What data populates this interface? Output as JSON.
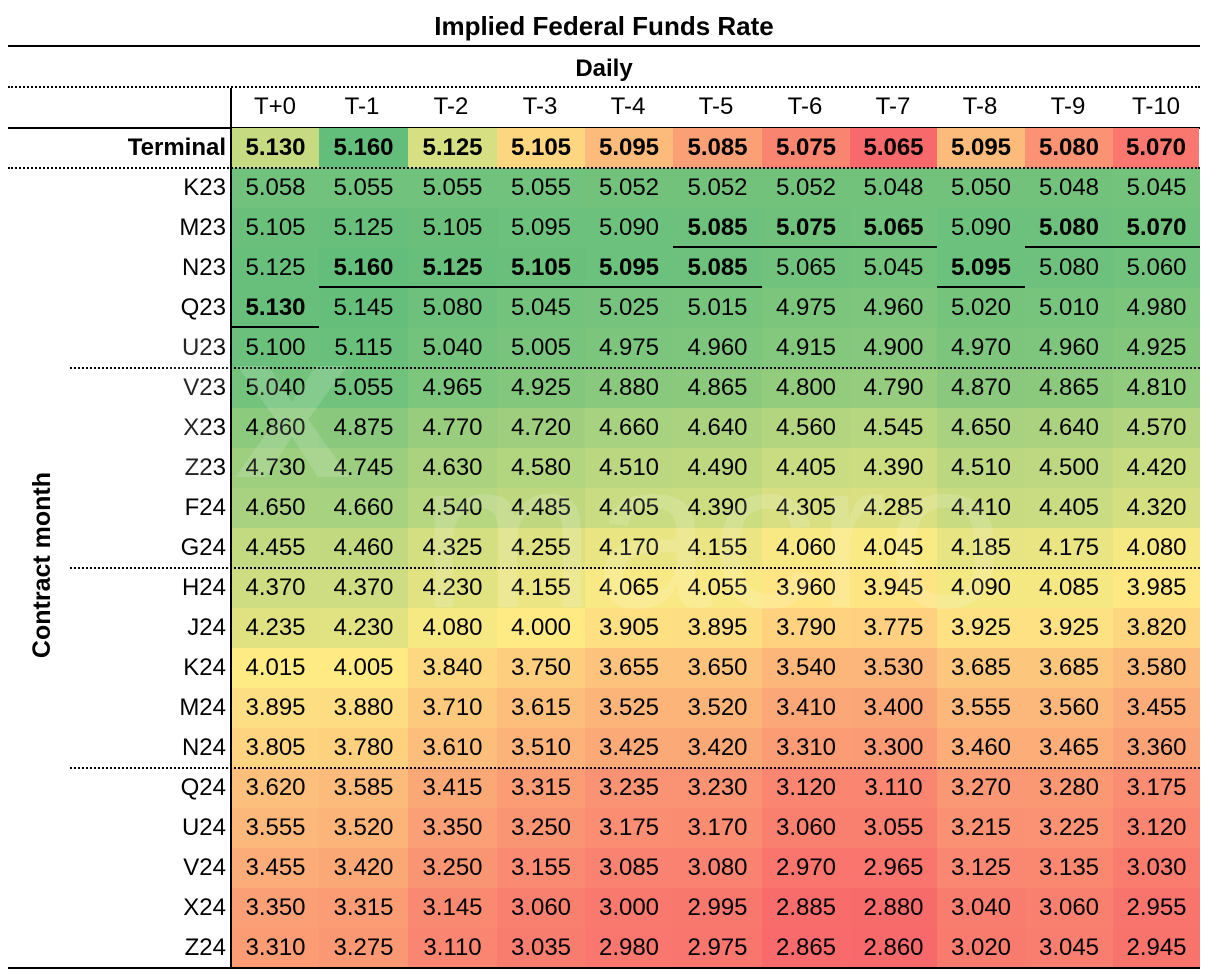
{
  "chart_data": {
    "type": "heatmap",
    "title": "Implied Federal Funds Rate",
    "subtitle": "Daily",
    "ylabel": "Contract month",
    "columns": [
      "T+0",
      "T-1",
      "T-2",
      "T-3",
      "T-4",
      "T-5",
      "T-6",
      "T-7",
      "T-8",
      "T-9",
      "T-10"
    ],
    "terminal": {
      "label": "Terminal",
      "values": [
        "5.130",
        "5.160",
        "5.125",
        "5.105",
        "5.095",
        "5.085",
        "5.075",
        "5.065",
        "5.095",
        "5.080",
        "5.070"
      ]
    },
    "rows": [
      {
        "label": "K23",
        "values": [
          "5.058",
          "5.055",
          "5.055",
          "5.055",
          "5.052",
          "5.052",
          "5.052",
          "5.048",
          "5.050",
          "5.048",
          "5.045"
        ]
      },
      {
        "label": "M23",
        "values": [
          "5.105",
          "5.125",
          "5.105",
          "5.095",
          "5.090",
          "5.085",
          "5.075",
          "5.065",
          "5.090",
          "5.080",
          "5.070"
        ]
      },
      {
        "label": "N23",
        "values": [
          "5.125",
          "5.160",
          "5.125",
          "5.105",
          "5.095",
          "5.085",
          "5.065",
          "5.045",
          "5.095",
          "5.080",
          "5.060"
        ]
      },
      {
        "label": "Q23",
        "values": [
          "5.130",
          "5.145",
          "5.080",
          "5.045",
          "5.025",
          "5.015",
          "4.975",
          "4.960",
          "5.020",
          "5.010",
          "4.980"
        ]
      },
      {
        "label": "U23",
        "values": [
          "5.100",
          "5.115",
          "5.040",
          "5.005",
          "4.975",
          "4.960",
          "4.915",
          "4.900",
          "4.970",
          "4.960",
          "4.925"
        ]
      },
      {
        "label": "V23",
        "values": [
          "5.040",
          "5.055",
          "4.965",
          "4.925",
          "4.880",
          "4.865",
          "4.800",
          "4.790",
          "4.870",
          "4.865",
          "4.810"
        ]
      },
      {
        "label": "X23",
        "values": [
          "4.860",
          "4.875",
          "4.770",
          "4.720",
          "4.660",
          "4.640",
          "4.560",
          "4.545",
          "4.650",
          "4.640",
          "4.570"
        ]
      },
      {
        "label": "Z23",
        "values": [
          "4.730",
          "4.745",
          "4.630",
          "4.580",
          "4.510",
          "4.490",
          "4.405",
          "4.390",
          "4.510",
          "4.500",
          "4.420"
        ]
      },
      {
        "label": "F24",
        "values": [
          "4.650",
          "4.660",
          "4.540",
          "4.485",
          "4.405",
          "4.390",
          "4.305",
          "4.285",
          "4.410",
          "4.405",
          "4.320"
        ]
      },
      {
        "label": "G24",
        "values": [
          "4.455",
          "4.460",
          "4.325",
          "4.255",
          "4.170",
          "4.155",
          "4.060",
          "4.045",
          "4.185",
          "4.175",
          "4.080"
        ]
      },
      {
        "label": "H24",
        "values": [
          "4.370",
          "4.370",
          "4.230",
          "4.155",
          "4.065",
          "4.055",
          "3.960",
          "3.945",
          "4.090",
          "4.085",
          "3.985"
        ]
      },
      {
        "label": "J24",
        "values": [
          "4.235",
          "4.230",
          "4.080",
          "4.000",
          "3.905",
          "3.895",
          "3.790",
          "3.775",
          "3.925",
          "3.925",
          "3.820"
        ]
      },
      {
        "label": "K24",
        "values": [
          "4.015",
          "4.005",
          "3.840",
          "3.750",
          "3.655",
          "3.650",
          "3.540",
          "3.530",
          "3.685",
          "3.685",
          "3.580"
        ]
      },
      {
        "label": "M24",
        "values": [
          "3.895",
          "3.880",
          "3.710",
          "3.615",
          "3.525",
          "3.520",
          "3.410",
          "3.400",
          "3.555",
          "3.560",
          "3.455"
        ]
      },
      {
        "label": "N24",
        "values": [
          "3.805",
          "3.780",
          "3.610",
          "3.510",
          "3.425",
          "3.420",
          "3.310",
          "3.300",
          "3.460",
          "3.465",
          "3.360"
        ]
      },
      {
        "label": "Q24",
        "values": [
          "3.620",
          "3.585",
          "3.415",
          "3.315",
          "3.235",
          "3.230",
          "3.120",
          "3.110",
          "3.270",
          "3.280",
          "3.175"
        ]
      },
      {
        "label": "U24",
        "values": [
          "3.555",
          "3.520",
          "3.350",
          "3.250",
          "3.175",
          "3.170",
          "3.060",
          "3.055",
          "3.215",
          "3.225",
          "3.120"
        ]
      },
      {
        "label": "V24",
        "values": [
          "3.455",
          "3.420",
          "3.250",
          "3.155",
          "3.085",
          "3.080",
          "2.970",
          "2.965",
          "3.125",
          "3.135",
          "3.030"
        ]
      },
      {
        "label": "X24",
        "values": [
          "3.350",
          "3.315",
          "3.145",
          "3.060",
          "3.000",
          "2.995",
          "2.885",
          "2.880",
          "3.040",
          "3.060",
          "2.955"
        ]
      },
      {
        "label": "Z24",
        "values": [
          "3.310",
          "3.275",
          "3.110",
          "3.035",
          "2.980",
          "2.975",
          "2.865",
          "2.860",
          "3.020",
          "3.045",
          "2.945"
        ]
      }
    ],
    "peak_highlight": {
      "bold_underlined": [
        [
          1,
          5
        ],
        [
          1,
          6
        ],
        [
          1,
          7
        ],
        [
          1,
          9
        ],
        [
          1,
          10
        ],
        [
          2,
          1
        ],
        [
          2,
          2
        ],
        [
          2,
          3
        ],
        [
          2,
          4
        ],
        [
          2,
          5
        ],
        [
          2,
          8
        ],
        [
          3,
          0
        ]
      ]
    },
    "colors": {
      "high": "#63be7b",
      "mid": "#ffeb84",
      "low": "#f8696b"
    },
    "watermark": "fxmacro"
  }
}
